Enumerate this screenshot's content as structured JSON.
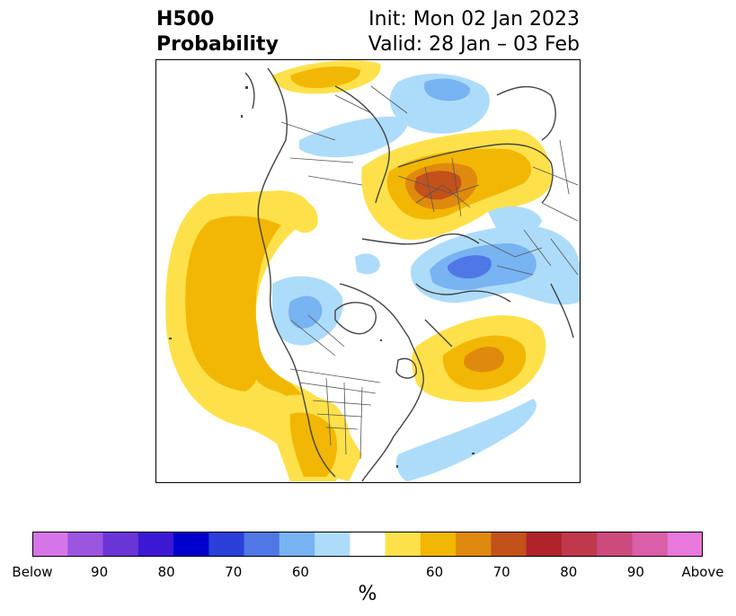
{
  "title": {
    "left_line1": "H500",
    "left_line2": "Probability",
    "right_line1": "Init: Mon 02 Jan 2023",
    "right_line2": "Valid: 28 Jan – 03 Feb"
  },
  "colorbar": {
    "colors": [
      "#d674ea",
      "#9b55e0",
      "#6a35d6",
      "#3c18d4",
      "#0000cc",
      "#2a3fd8",
      "#4f78e6",
      "#78b3f2",
      "#addcfa",
      "#ffffff",
      "#fee14a",
      "#f2b705",
      "#df8a0e",
      "#c3511a",
      "#b1232a",
      "#c0384c",
      "#cc4b7c",
      "#da5ea8",
      "#e878dc"
    ],
    "tick_labels": [
      {
        "label": "Below",
        "index": 0
      },
      {
        "label": "90",
        "index": 2
      },
      {
        "label": "80",
        "index": 4
      },
      {
        "label": "70",
        "index": 6
      },
      {
        "label": "60",
        "index": 8
      },
      {
        "label": "60",
        "index": 12
      },
      {
        "label": "70",
        "index": 14
      },
      {
        "label": "80",
        "index": 16
      },
      {
        "label": "90",
        "index": 18
      },
      {
        "label": "Above",
        "index": 20
      }
    ],
    "unit": "%"
  }
}
